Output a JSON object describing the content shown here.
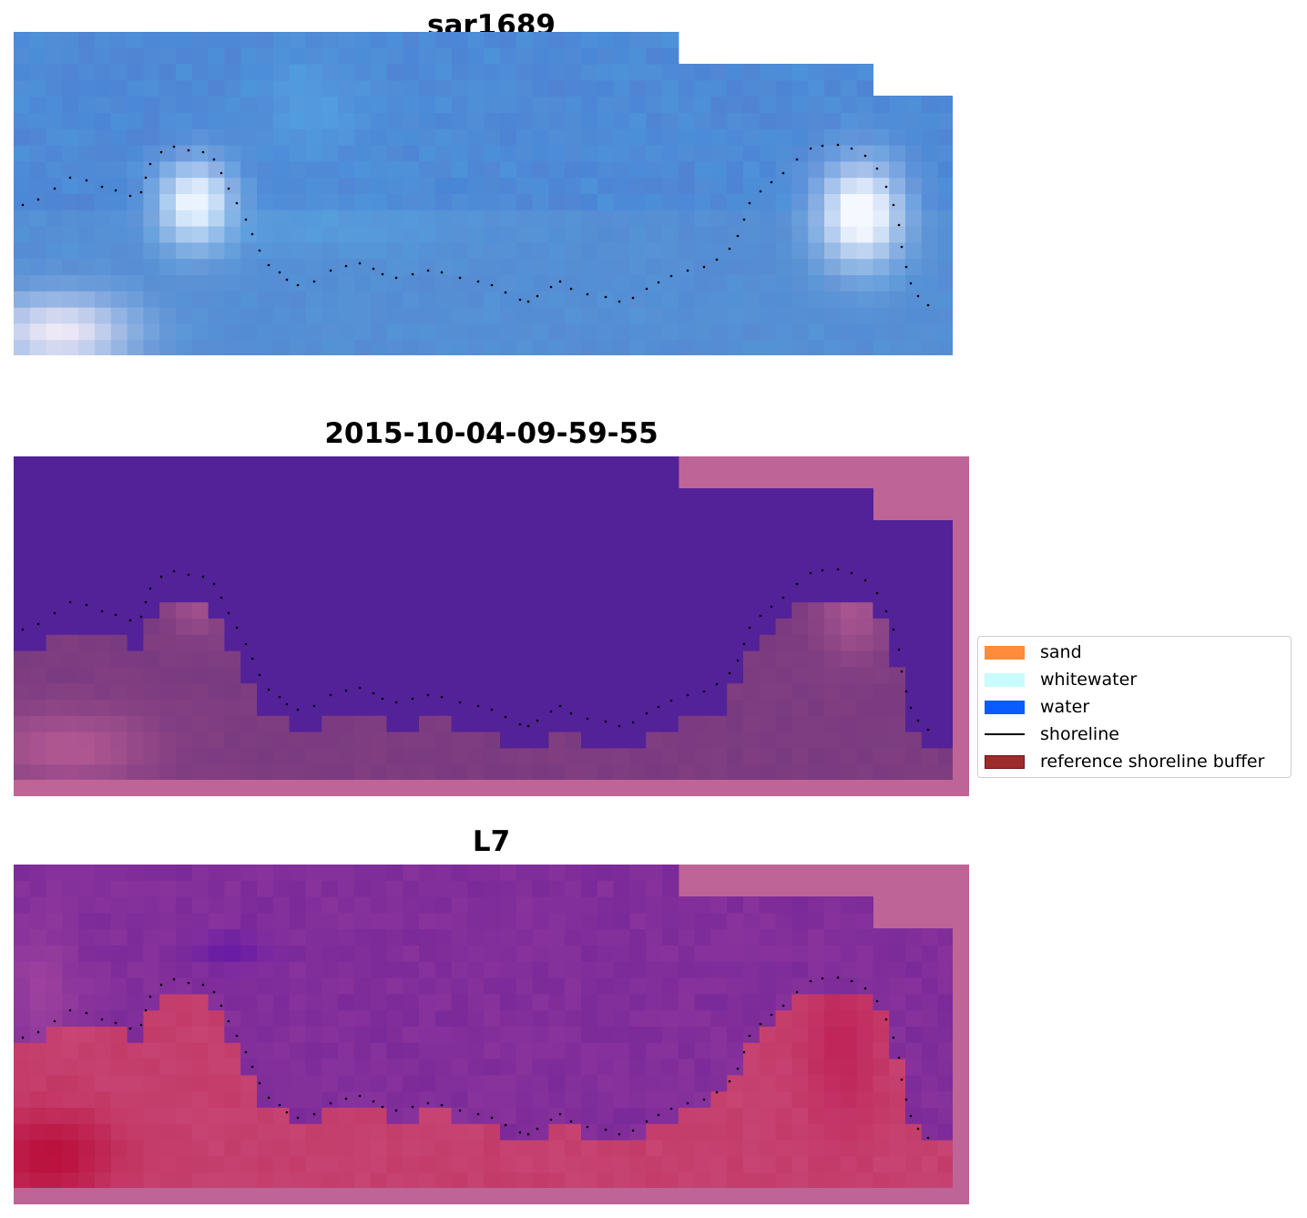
{
  "panels": [
    {
      "title": "sar1689"
    },
    {
      "title": "2015-10-04-09-59-55"
    },
    {
      "title": "L7"
    }
  ],
  "legend": {
    "position": "center-right",
    "items": [
      {
        "label": "sand",
        "type": "patch",
        "color": "#ff8c3a"
      },
      {
        "label": "whitewater",
        "type": "patch",
        "color": "#c8fcfc"
      },
      {
        "label": "water",
        "type": "patch",
        "color": "#0a5cff"
      },
      {
        "label": "shoreline",
        "type": "line",
        "color": "#000000"
      },
      {
        "label": "reference shoreline buffer",
        "type": "patch",
        "color": "#9e2b2b"
      }
    ]
  },
  "colors": {
    "rgb_water": "#4a86d6",
    "class_water": "#532299",
    "class_land": "#7a3a80",
    "buffer_mask": "#be6496",
    "mndwi_water": "#7b2a99",
    "mndwi_land": "#c03a6a"
  }
}
